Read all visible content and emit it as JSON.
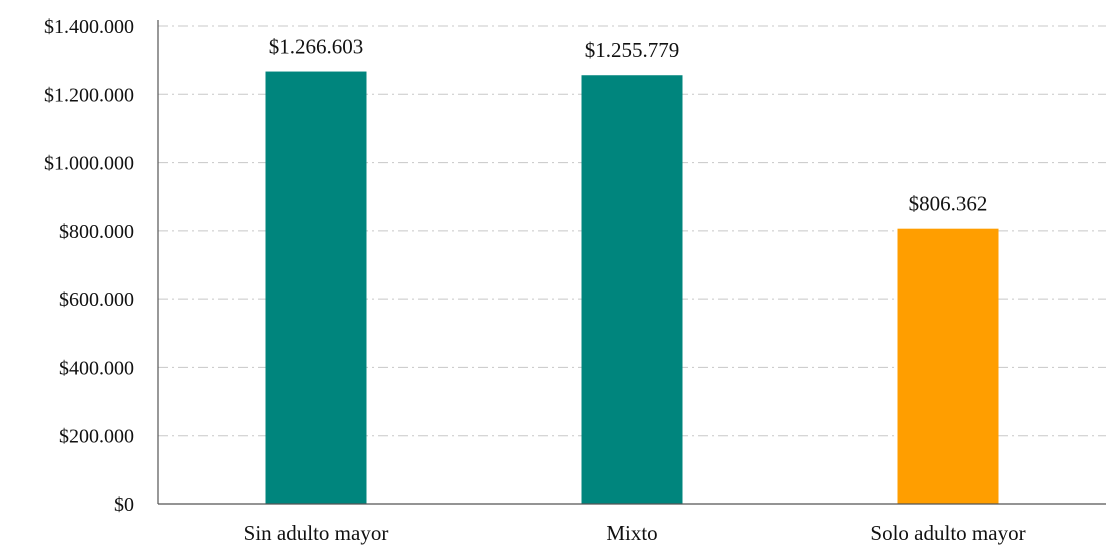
{
  "chart_data": {
    "type": "bar",
    "categories": [
      "Sin adulto mayor",
      "Mixto",
      "Solo adulto mayor"
    ],
    "values": [
      1266603,
      1255779,
      806362
    ],
    "value_labels": [
      "$1.266.603",
      "$1.255.779",
      "$806.362"
    ],
    "bar_colors": [
      "#00857d",
      "#00857d",
      "#ff9e00"
    ],
    "ylim": [
      0,
      1400000
    ],
    "yticks": [
      0,
      200000,
      400000,
      600000,
      800000,
      1000000,
      1200000,
      1400000
    ],
    "ytick_labels": [
      "$0",
      "$200.000",
      "$400.000",
      "$600.000",
      "$800.000",
      "$1.000.000",
      "$1.200.000",
      "$1.400.000"
    ],
    "grid": true,
    "legend": false,
    "title": "",
    "xlabel": "",
    "ylabel": ""
  }
}
